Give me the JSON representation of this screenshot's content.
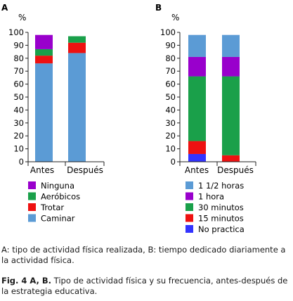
{
  "chart_data": [
    {
      "type": "bar",
      "stacked": true,
      "panel_label": "A",
      "ylabel": "%",
      "ylim": [
        0,
        100
      ],
      "y_ticks": [
        0,
        10,
        20,
        30,
        40,
        50,
        60,
        70,
        80,
        90,
        100
      ],
      "grid": false,
      "categories": [
        "Antes",
        "Después"
      ],
      "series": [
        {
          "name": "Caminar",
          "color": "#5b9bd5",
          "values": [
            76,
            84
          ]
        },
        {
          "name": "Trotar",
          "color": "#ee1111",
          "values": [
            6,
            8
          ]
        },
        {
          "name": "Aeróbicos",
          "color": "#1aa04a",
          "values": [
            5,
            5
          ]
        },
        {
          "name": "Ninguna",
          "color": "#9900cc",
          "values": [
            11,
            0
          ]
        }
      ],
      "legend_order": [
        "Ninguna",
        "Aeróbicos",
        "Trotar",
        "Caminar"
      ],
      "legend_position": "bottom"
    },
    {
      "type": "bar",
      "stacked": true,
      "panel_label": "B",
      "ylabel": "%",
      "ylim": [
        0,
        100
      ],
      "y_ticks": [
        0,
        10,
        20,
        30,
        40,
        50,
        60,
        70,
        80,
        90,
        100
      ],
      "grid": false,
      "categories": [
        "Antes",
        "Después"
      ],
      "series": [
        {
          "name": "No practica",
          "color": "#3333ff",
          "values": [
            6,
            0
          ]
        },
        {
          "name": "15 minutos",
          "color": "#ee1111",
          "values": [
            10,
            5
          ]
        },
        {
          "name": "30 minutos",
          "color": "#1aa04a",
          "values": [
            50,
            61
          ]
        },
        {
          "name": "1 hora",
          "color": "#9900cc",
          "values": [
            15,
            15
          ]
        },
        {
          "name": "1 1/2 horas",
          "color": "#5b9bd5",
          "values": [
            17,
            17
          ]
        }
      ],
      "legend_order": [
        "1 1/2 horas",
        "1 hora",
        "30 minutos",
        "15 minutos",
        "No practica"
      ],
      "legend_position": "bottom"
    }
  ],
  "caption": {
    "text_a": "A: tipo de actividad física realizada, B: tiempo dedicado diariamente a la actividad física.",
    "label_b": "Fig. 4 A, B.",
    "text_b": " Tipo de actividad física y su frecuencia, antes-después de la estrategia educativa."
  }
}
